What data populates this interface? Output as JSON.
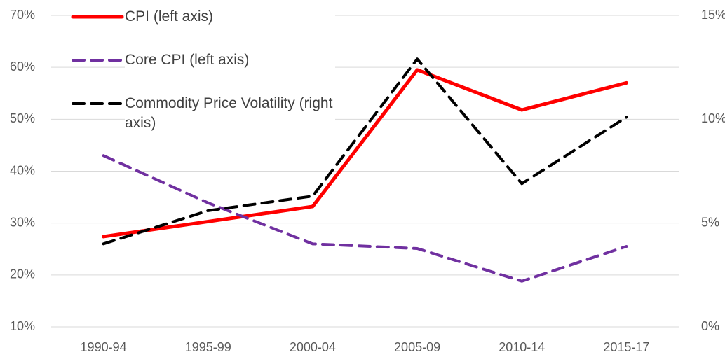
{
  "chart_data": {
    "type": "line",
    "categories": [
      "1990-94",
      "1995-99",
      "2000-04",
      "2005-09",
      "2010-14",
      "2015-17"
    ],
    "series": [
      {
        "name": "CPI (left axis)",
        "color": "#ff0000",
        "style": "solid",
        "values": [
          27.4,
          30.3,
          33.2,
          59.5,
          51.8,
          57.0
        ]
      },
      {
        "name": "Core CPI (left axis)",
        "color": "#7030a0",
        "style": "dashed",
        "values": [
          43.0,
          33.9,
          26.0,
          25.1,
          18.8,
          25.5
        ]
      },
      {
        "name": "Commodity Price Volatility (right axis)",
        "color": "#000000",
        "style": "dashed",
        "axis": "y2",
        "values": [
          4.0,
          5.6,
          6.3,
          12.9,
          6.9,
          10.1
        ]
      }
    ],
    "ylim": [
      10,
      70
    ],
    "yticks": [
      {
        "value": 10,
        "label": "10%"
      },
      {
        "value": 20,
        "label": "20%"
      },
      {
        "value": 30,
        "label": "30%"
      },
      {
        "value": 40,
        "label": "40%"
      },
      {
        "value": 50,
        "label": "50%"
      },
      {
        "value": 60,
        "label": "60%"
      },
      {
        "value": 70,
        "label": "70%"
      }
    ],
    "y2lim": [
      0,
      15
    ],
    "y2ticks": [
      {
        "value": 0,
        "label": "0%"
      },
      {
        "value": 5,
        "label": "5%"
      },
      {
        "value": 10,
        "label": "10%"
      },
      {
        "value": 15,
        "label": "15%"
      }
    ],
    "grid": true
  }
}
